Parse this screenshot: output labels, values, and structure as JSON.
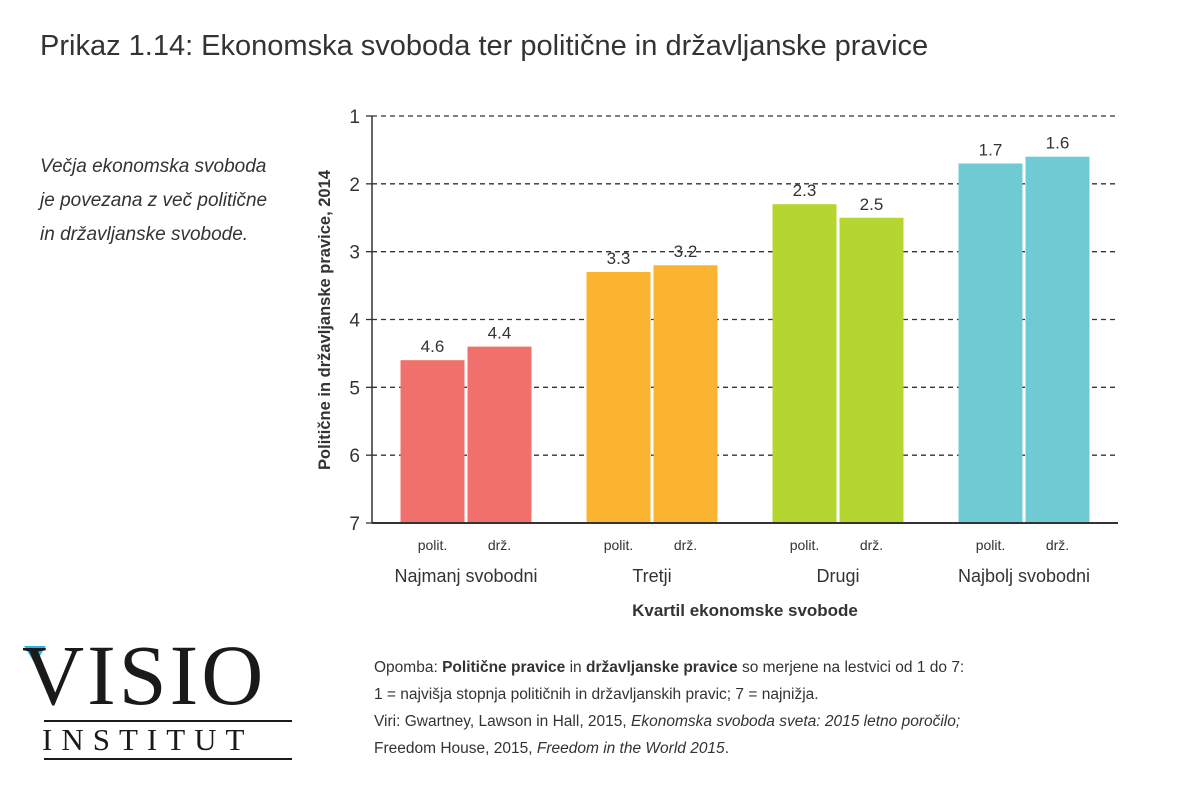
{
  "title": "Prikaz 1.14: Ekonomska svoboda ter politične in državljanske pravice",
  "side_note": "Večja ekonomska svoboda je povezana z več politične in državljanske svobode.",
  "logo": {
    "main": "VISIO",
    "sub": "INSTITUT"
  },
  "note": {
    "opomba_label": "Opomba:",
    "politicne": "Politične pravice",
    "in1": "in",
    "drzavljanske": "državljanske pravice",
    "rest1": "so merjene na lestvici od 1 do 7:",
    "line2": "1 = najvišja stopnja političnih in državljanskih pravic; 7 = najnižja.",
    "viri_prefix": "Viri: Gwartney, Lawson in Hall, 2015,",
    "viri_italic": "Ekonomska svoboda sveta: 2015 letno poročilo;",
    "fh_prefix": "Freedom House, 2015,",
    "fh_italic": "Freedom in the World 2015",
    "fh_end": "."
  },
  "chart_data": {
    "type": "bar",
    "ylabel": "Politične in državljanske pravice, 2014",
    "xlabel": "Kvartil ekonomske svobode",
    "ylim": [
      1,
      7
    ],
    "y_inverted": true,
    "yticks": [
      "1",
      "2",
      "3",
      "4",
      "5",
      "6",
      "7"
    ],
    "grid": "horizontal dashed",
    "groups": [
      {
        "label": "Najmanj svobodni",
        "color": "#f0706b",
        "bars": [
          {
            "label": "polit.",
            "value": 4.6,
            "value_label": "4.6"
          },
          {
            "label": "drž.",
            "value": 4.4,
            "value_label": "4.4"
          }
        ]
      },
      {
        "label": "Tretji",
        "color": "#fbb42f",
        "bars": [
          {
            "label": "polit.",
            "value": 3.3,
            "value_label": "3.3"
          },
          {
            "label": "drž.",
            "value": 3.2,
            "value_label": "3.2"
          }
        ]
      },
      {
        "label": "Drugi",
        "color": "#b5d531",
        "bars": [
          {
            "label": "polit.",
            "value": 2.3,
            "value_label": "2.3"
          },
          {
            "label": "drž.",
            "value": 2.5,
            "value_label": "2.5"
          }
        ]
      },
      {
        "label": "Najbolj svobodni",
        "color": "#6fcbd3",
        "bars": [
          {
            "label": "polit.",
            "value": 1.7,
            "value_label": "1.7"
          },
          {
            "label": "drž.",
            "value": 1.6,
            "value_label": "1.6"
          }
        ]
      }
    ]
  }
}
